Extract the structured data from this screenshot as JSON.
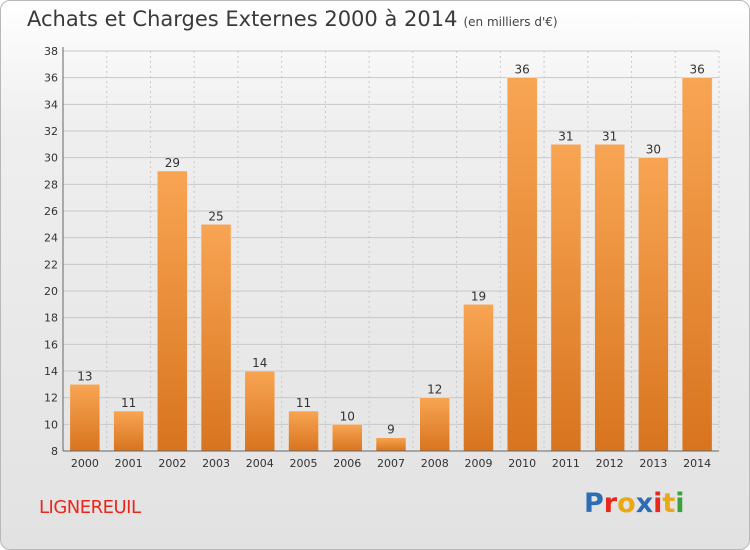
{
  "header": {
    "title": "Achats et Charges Externes 2000 à 2014",
    "subtitle": "(en milliers d'€)"
  },
  "footer": {
    "place": "LIGNEREUIL",
    "logo": "Proxiti",
    "logo_colors": [
      "#2e6db4",
      "#e8281c",
      "#e8a817",
      "#2e6db4",
      "#e8281c",
      "#e8a817",
      "#3aa23a"
    ]
  },
  "colors": {
    "bar_top": "#f8a553",
    "bar_bottom": "#d8741f",
    "grid": "#c8c8c8",
    "axis_text": "#333333"
  },
  "chart_data": {
    "type": "bar",
    "categories": [
      "2000",
      "2001",
      "2002",
      "2003",
      "2004",
      "2005",
      "2006",
      "2007",
      "2008",
      "2009",
      "2010",
      "2011",
      "2012",
      "2013",
      "2014"
    ],
    "values": [
      13,
      11,
      29,
      25,
      14,
      11,
      10,
      9,
      12,
      19,
      36,
      31,
      31,
      30,
      36
    ],
    "ylim": [
      8,
      38
    ],
    "yticks": [
      8,
      10,
      12,
      14,
      16,
      18,
      20,
      22,
      24,
      26,
      28,
      30,
      32,
      34,
      36,
      38
    ],
    "grid": true
  }
}
